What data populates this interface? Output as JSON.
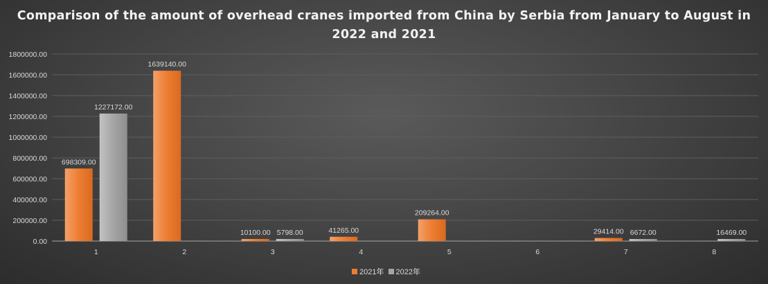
{
  "chart_data": {
    "type": "bar",
    "title": "Comparison of the amount of overhead cranes imported from China by Serbia from January to August in 2022 and 2021",
    "categories": [
      "1",
      "2",
      "3",
      "4",
      "5",
      "6",
      "7",
      "8"
    ],
    "series": [
      {
        "name": "2021年",
        "color": "#ed7d31",
        "values": [
          698309,
          1639140,
          10100,
          41265,
          209264,
          null,
          29414,
          null
        ]
      },
      {
        "name": "2022年",
        "color": "#a5a5a5",
        "values": [
          1227172,
          null,
          5798,
          null,
          null,
          null,
          6672,
          16469
        ]
      }
    ],
    "ylim": [
      0,
      1800000
    ],
    "yticks": [
      0,
      200000,
      400000,
      600000,
      800000,
      1000000,
      1200000,
      1400000,
      1600000,
      1800000
    ],
    "grid": true,
    "legend": "bottom",
    "xlabel": "",
    "ylabel": ""
  }
}
